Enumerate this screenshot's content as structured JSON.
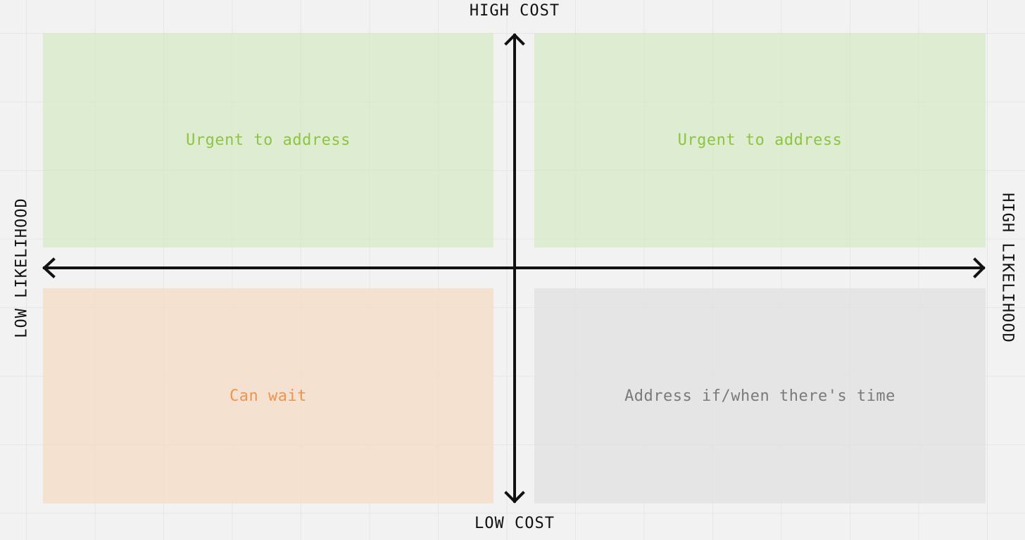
{
  "axes": {
    "top_label": "HIGH COST",
    "bottom_label": "LOW COST",
    "left_label": "LOW LIKELIHOOD",
    "right_label": "HIGH LIKELIHOOD"
  },
  "quadrants": {
    "top_left": {
      "label": "Urgent to address",
      "text_color": "#8cc63f"
    },
    "top_right": {
      "label": "Urgent to address",
      "text_color": "#8cc63f"
    },
    "bottom_left": {
      "label": "Can wait",
      "text_color": "#f0944d"
    },
    "bottom_right": {
      "label": "Address if/when there's time",
      "text_color": "#7a7a7a"
    }
  },
  "colors": {
    "axis": "#111111",
    "background": "#f2f2f2",
    "green_fill": "#dcebd0",
    "orange_fill": "#f4e0d0",
    "gray_fill": "#e5e5e5"
  }
}
